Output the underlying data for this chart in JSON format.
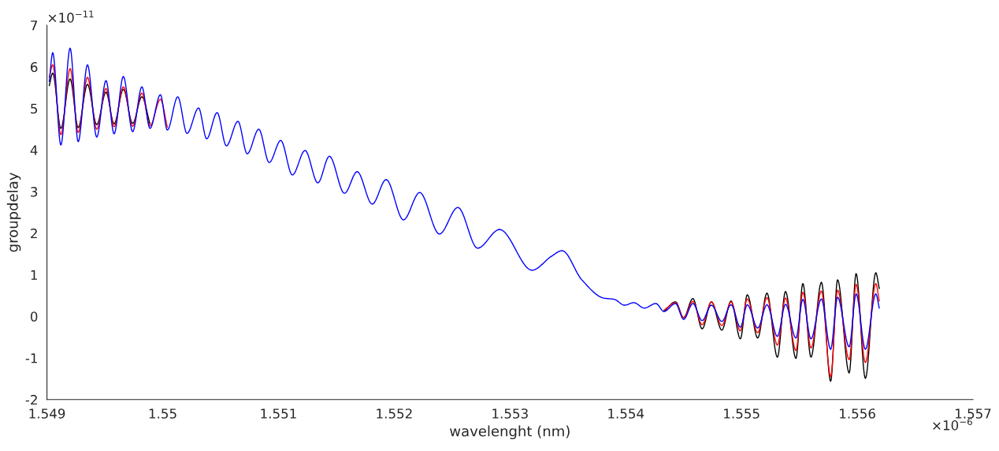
{
  "chart_data": {
    "type": "line",
    "xlabel": "wavelenght (nm)",
    "ylabel": "groupdelay",
    "annotations": [
      "×10$^{−11}$",
      "×10$^{−6}$"
    ],
    "x": [
      1.54902,
      1.54905,
      1.54912,
      1.5492,
      1.54927,
      1.54935,
      1.54943,
      1.54951,
      1.54958,
      1.54966,
      1.54974,
      1.54982,
      1.54989,
      1.54998,
      1.55004,
      1.55013,
      1.55021,
      1.55031,
      1.55038,
      1.55047,
      1.55055,
      1.55065,
      1.55073,
      1.55083,
      1.55092,
      1.55102,
      1.55112,
      1.55123,
      1.55134,
      1.55144,
      1.55157,
      1.55168,
      1.55181,
      1.55193,
      1.55208,
      1.55222,
      1.55239,
      1.55255,
      1.55272,
      1.55291,
      1.55319,
      1.55336,
      1.55345,
      1.55362,
      1.55381,
      1.5539,
      1.55399,
      1.55407,
      1.55416,
      1.55426,
      1.55433,
      1.55443,
      1.5545,
      1.55458,
      1.55466,
      1.55474,
      1.55483,
      1.55491,
      1.55499,
      1.55505,
      1.55514,
      1.55522,
      1.55531,
      1.55538,
      1.55547,
      1.55553,
      1.5556,
      1.55569,
      1.55577,
      1.55583,
      1.55593,
      1.55599,
      1.55607,
      1.55616,
      1.55619
    ],
    "series": [
      {
        "color": "#000000",
        "values": [
          5.55,
          5.85,
          4.52,
          5.71,
          4.54,
          5.58,
          4.61,
          5.39,
          4.63,
          5.46,
          4.64,
          5.28,
          4.63,
          null,
          null,
          null,
          null,
          null,
          null,
          null,
          null,
          null,
          null,
          null,
          null,
          null,
          null,
          null,
          null,
          null,
          null,
          null,
          null,
          null,
          null,
          null,
          null,
          null,
          null,
          null,
          null,
          null,
          null,
          null,
          null,
          null,
          null,
          null,
          null,
          null,
          0.12,
          0.35,
          -0.03,
          0.43,
          -0.3,
          0.35,
          -0.33,
          0.37,
          -0.54,
          0.52,
          -0.52,
          0.56,
          -0.98,
          0.6,
          -1.01,
          0.79,
          -0.98,
          0.82,
          -1.56,
          0.88,
          -1.36,
          1.03,
          -1.49,
          1.05,
          0.67
        ]
      },
      {
        "color": "#ff0000",
        "values": [
          5.75,
          6.05,
          4.37,
          5.96,
          4.42,
          5.75,
          4.5,
          5.48,
          4.56,
          5.52,
          4.57,
          5.37,
          4.58,
          5.22,
          4.55,
          null,
          null,
          null,
          null,
          null,
          null,
          null,
          null,
          null,
          null,
          null,
          null,
          null,
          null,
          null,
          null,
          null,
          null,
          null,
          null,
          null,
          null,
          null,
          null,
          null,
          null,
          null,
          null,
          null,
          null,
          null,
          null,
          null,
          null,
          null,
          0.15,
          0.33,
          -0.03,
          0.36,
          -0.2,
          0.35,
          -0.22,
          0.35,
          -0.35,
          0.42,
          -0.39,
          0.45,
          -0.69,
          0.44,
          -0.82,
          0.58,
          -0.76,
          0.61,
          -1.45,
          0.63,
          -1.04,
          0.77,
          -1.11,
          0.79,
          0.37
        ]
      },
      {
        "color": "#0000ff",
        "values": [
          5.65,
          6.34,
          4.12,
          6.45,
          4.2,
          6.05,
          4.31,
          5.67,
          4.39,
          5.77,
          4.44,
          5.52,
          4.52,
          5.33,
          4.48,
          5.28,
          4.4,
          5.01,
          4.27,
          4.9,
          4.1,
          4.69,
          3.91,
          4.5,
          3.7,
          4.23,
          3.4,
          3.99,
          3.21,
          3.85,
          2.96,
          3.48,
          2.7,
          3.29,
          2.32,
          2.98,
          1.98,
          2.62,
          1.64,
          2.09,
          1.11,
          1.45,
          1.58,
          0.88,
          0.44,
          0.41,
          0.27,
          0.33,
          0.2,
          0.31,
          0.12,
          0.31,
          -0.07,
          0.31,
          -0.1,
          0.27,
          -0.12,
          0.28,
          -0.26,
          0.28,
          -0.28,
          0.28,
          -0.48,
          0.29,
          -0.52,
          0.41,
          -0.54,
          0.42,
          -0.79,
          0.46,
          -0.73,
          0.54,
          -0.79,
          0.54,
          0.2
        ]
      }
    ],
    "xlim": [
      1.549,
      1.557
    ],
    "xticks": [
      1.549,
      1.55,
      1.551,
      1.552,
      1.553,
      1.554,
      1.555,
      1.556,
      1.557
    ],
    "ylim": [
      -2,
      7
    ],
    "yticks": [
      -2,
      -1,
      0,
      1,
      2,
      3,
      4,
      5,
      6,
      7
    ],
    "grid": false
  }
}
